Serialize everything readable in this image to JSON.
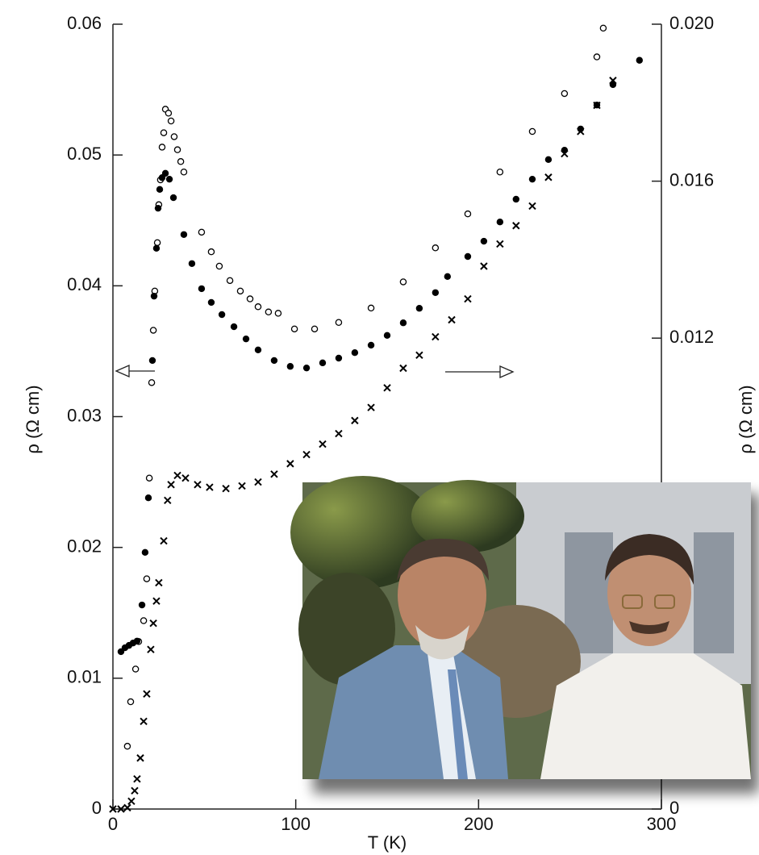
{
  "chart_data": {
    "type": "scatter",
    "x_label": "T (K)",
    "y_label": "ρ (Ω cm)",
    "y2_label": "ρ (Ω cm)",
    "xlim": [
      0,
      300
    ],
    "xticks": [
      0,
      100,
      200,
      300
    ],
    "ylim": [
      0,
      0.06
    ],
    "yticks": [
      0,
      0.01,
      0.02,
      0.03,
      0.04,
      0.05,
      0.06
    ],
    "y2lim": [
      0,
      0.02
    ],
    "y2ticks": [
      0,
      0.012,
      0.016,
      {
        "value": 0.02,
        "label": "0.020"
      }
    ],
    "series": [
      {
        "marker": "open-circle",
        "color": "#000",
        "x": [
          7.9,
          9.7,
          12.4,
          14.1,
          16.8,
          18.5,
          19.9,
          21.2,
          22.1,
          22.9,
          24.3,
          25.1,
          26.0,
          26.9,
          27.8,
          28.7,
          30.4,
          31.8,
          33.5,
          35.3,
          37.1,
          38.8,
          48.5,
          53.8,
          58.2,
          64.0,
          69.7,
          75.0,
          79.4,
          85.1,
          90.4,
          99.3,
          110.3,
          123.5,
          141.2,
          158.8,
          176.4,
          194.1,
          211.7,
          229.4,
          247.0,
          264.7,
          268.2
        ],
        "values": [
          0.0048,
          0.0082,
          0.0107,
          0.0128,
          0.0144,
          0.0176,
          0.0253,
          0.0326,
          0.0366,
          0.0396,
          0.0433,
          0.0462,
          0.0481,
          0.0506,
          0.0517,
          0.0535,
          0.0532,
          0.0526,
          0.0514,
          0.0504,
          0.0495,
          0.0487,
          0.0441,
          0.0426,
          0.0415,
          0.0404,
          0.0396,
          0.039,
          0.0384,
          0.038,
          0.0379,
          0.0367,
          0.0367,
          0.0372,
          0.0383,
          0.0403,
          0.0429,
          0.0455,
          0.0487,
          0.0518,
          0.0547,
          0.0575,
          0.0597
        ]
      },
      {
        "marker": "filled-circle",
        "color": "#000",
        "axis": "y2",
        "x": [
          4.4,
          6.6,
          8.8,
          11.0,
          13.2,
          15.9,
          17.6,
          19.4,
          21.6,
          22.5,
          23.8,
          24.7,
          25.6,
          26.9,
          28.7,
          30.9,
          33.1,
          38.8,
          43.2,
          48.5,
          53.8,
          59.6,
          66.2,
          72.8,
          79.4,
          88.2,
          97.0,
          105.9,
          114.7,
          123.5,
          132.3,
          141.2,
          150.0,
          158.8,
          167.6,
          176.4,
          183.0,
          194.1,
          202.9,
          211.7,
          220.5,
          229.4,
          238.2,
          247.0,
          255.8,
          264.7,
          273.5,
          288.0
        ],
        "values": [
          0.00401,
          0.00411,
          0.00417,
          0.00423,
          0.00428,
          0.0052,
          0.00654,
          0.00793,
          0.01143,
          0.01307,
          0.01429,
          0.01531,
          0.01579,
          0.01609,
          0.0162,
          0.01605,
          0.01558,
          0.01464,
          0.0139,
          0.01326,
          0.01291,
          0.0126,
          0.01229,
          0.01198,
          0.0117,
          0.01143,
          0.01128,
          0.01124,
          0.01137,
          0.01149,
          0.01163,
          0.01182,
          0.01207,
          0.01239,
          0.01276,
          0.01316,
          0.01357,
          0.01408,
          0.01447,
          0.01496,
          0.01554,
          0.01605,
          0.01655,
          0.01679,
          0.01733,
          0.01794,
          0.01846,
          0.01908
        ]
      },
      {
        "marker": "cross",
        "color": "#000",
        "x": [
          0,
          4.4,
          7.9,
          10.1,
          11.9,
          13.2,
          15.0,
          16.8,
          18.5,
          20.7,
          22.1,
          23.8,
          25.1,
          27.8,
          29.9,
          31.8,
          35.3,
          39.7,
          46.3,
          52.9,
          61.8,
          70.6,
          79.4,
          88.2,
          97.0,
          105.9,
          114.7,
          123.5,
          132.3,
          141.2,
          150.0,
          158.8,
          167.6,
          176.4,
          185.3,
          194.1,
          202.9,
          211.7,
          220.5,
          229.4,
          238.2,
          247.0,
          255.8,
          264.7,
          273.5
        ],
        "values": [
          0,
          0,
          0.0001,
          0.0006,
          0.0014,
          0.0023,
          0.0039,
          0.0067,
          0.0088,
          0.0122,
          0.0142,
          0.0159,
          0.0173,
          0.0205,
          0.0236,
          0.0248,
          0.0255,
          0.0253,
          0.0248,
          0.0246,
          0.0245,
          0.0247,
          0.025,
          0.0256,
          0.0264,
          0.0271,
          0.0279,
          0.0287,
          0.0297,
          0.0307,
          0.0322,
          0.0337,
          0.0347,
          0.0361,
          0.0374,
          0.039,
          0.0415,
          0.0432,
          0.0446,
          0.0461,
          0.0483,
          0.0501,
          0.0518,
          0.0538,
          0.0557
        ]
      }
    ]
  }
}
